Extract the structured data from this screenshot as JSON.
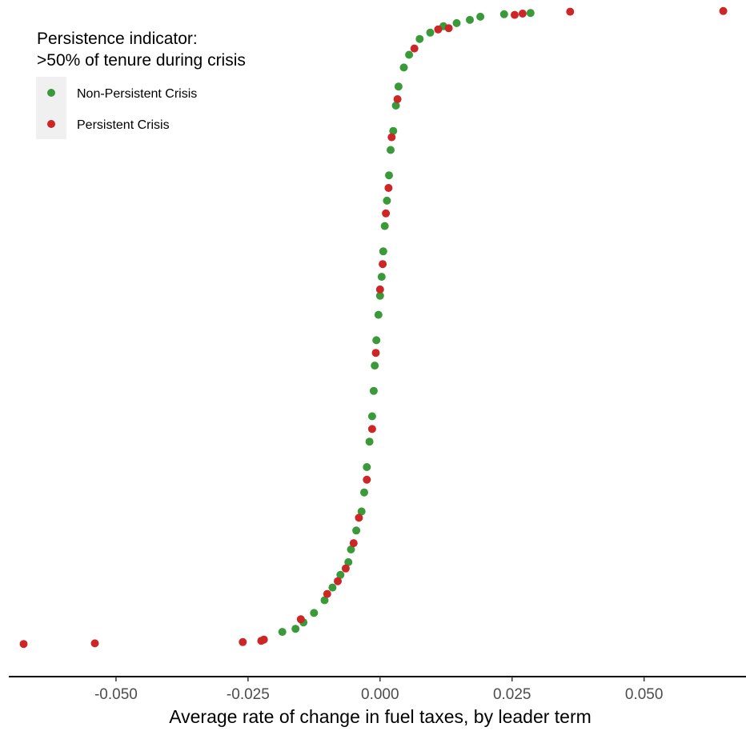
{
  "chart_data": {
    "type": "scatter",
    "title": "",
    "xlabel": "Average rate of change in fuel taxes, by leader term",
    "ylabel": "",
    "xlim": [
      -0.0703,
      0.0693
    ],
    "x_ticks": [
      -0.05,
      -0.025,
      0.0,
      0.025,
      0.05
    ],
    "x_tick_labels": [
      "-0.050",
      "-0.025",
      "0.000",
      "0.025",
      "0.050"
    ],
    "y_axis_shown": false,
    "grid": false,
    "legend": {
      "title_lines": [
        "Persistence indicator:",
        ">50% of tenure during crisis"
      ],
      "placement": "top-left",
      "entries": [
        {
          "label": "Non-Persistent Crisis",
          "color": "#3a9a3a"
        },
        {
          "label": "Persistent Crisis",
          "color": "#cc2626"
        }
      ]
    },
    "series": [
      {
        "name": "Non-Persistent Crisis",
        "color": "#3a9a3a",
        "points": [
          [
            -0.0185,
            0.02
          ],
          [
            -0.016,
            0.025
          ],
          [
            -0.0145,
            0.035
          ],
          [
            -0.0125,
            0.05
          ],
          [
            -0.0105,
            0.07
          ],
          [
            -0.009,
            0.09
          ],
          [
            -0.0075,
            0.11
          ],
          [
            -0.006,
            0.13
          ],
          [
            -0.0055,
            0.15
          ],
          [
            -0.0045,
            0.18
          ],
          [
            -0.0035,
            0.21
          ],
          [
            -0.003,
            0.24
          ],
          [
            -0.0025,
            0.28
          ],
          [
            -0.002,
            0.32
          ],
          [
            -0.0015,
            0.36
          ],
          [
            -0.0012,
            0.4
          ],
          [
            -0.001,
            0.44
          ],
          [
            -0.0007,
            0.48
          ],
          [
            -0.0003,
            0.52
          ],
          [
            0.0,
            0.55
          ],
          [
            0.0003,
            0.58
          ],
          [
            0.0006,
            0.62
          ],
          [
            0.0009,
            0.66
          ],
          [
            0.0013,
            0.7
          ],
          [
            0.0017,
            0.74
          ],
          [
            0.002,
            0.78
          ],
          [
            0.0025,
            0.81
          ],
          [
            0.003,
            0.85
          ],
          [
            0.0035,
            0.88
          ],
          [
            0.0045,
            0.91
          ],
          [
            0.0055,
            0.93
          ],
          [
            0.0075,
            0.955
          ],
          [
            0.0095,
            0.965
          ],
          [
            0.012,
            0.975
          ],
          [
            0.0145,
            0.98
          ],
          [
            0.017,
            0.985
          ],
          [
            0.019,
            0.99
          ],
          [
            0.0235,
            0.994
          ],
          [
            0.0285,
            0.996
          ]
        ]
      },
      {
        "name": "Persistent Crisis",
        "color": "#cc2626",
        "points": [
          [
            -0.0675,
            0.001
          ],
          [
            -0.054,
            0.002
          ],
          [
            -0.026,
            0.004
          ],
          [
            -0.0225,
            0.006
          ],
          [
            -0.022,
            0.008
          ],
          [
            -0.015,
            0.04
          ],
          [
            -0.01,
            0.08
          ],
          [
            -0.008,
            0.1
          ],
          [
            -0.0065,
            0.12
          ],
          [
            -0.005,
            0.16
          ],
          [
            -0.004,
            0.2
          ],
          [
            -0.0025,
            0.26
          ],
          [
            -0.0015,
            0.34
          ],
          [
            -0.0008,
            0.46
          ],
          [
            0.0,
            0.56
          ],
          [
            0.0005,
            0.6
          ],
          [
            0.0011,
            0.68
          ],
          [
            0.0016,
            0.72
          ],
          [
            0.0022,
            0.8
          ],
          [
            0.0033,
            0.86
          ],
          [
            0.0065,
            0.94
          ],
          [
            0.011,
            0.97
          ],
          [
            0.013,
            0.972
          ],
          [
            0.0255,
            0.993
          ],
          [
            0.027,
            0.995
          ],
          [
            0.036,
            0.998
          ],
          [
            0.065,
            0.999
          ]
        ]
      }
    ]
  }
}
